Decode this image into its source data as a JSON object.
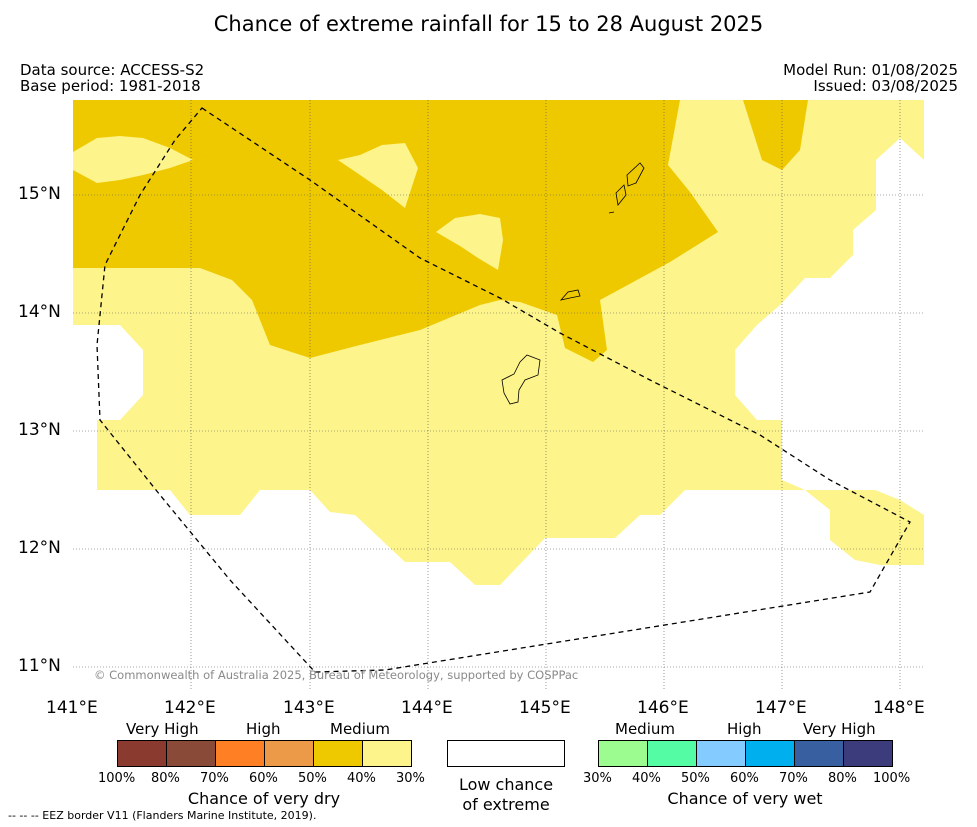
{
  "title": "Chance of extreme rainfall for 15 to 28 August 2025",
  "meta": {
    "data_source": "Data source: ACCESS-S2",
    "base_period": "Base period: 1981-2018",
    "model_run": "Model Run: 01/08/2025",
    "issued": "Issued: 03/08/2025"
  },
  "map": {
    "lon_ticks": [
      "141°E",
      "142°E",
      "143°E",
      "144°E",
      "145°E",
      "146°E",
      "147°E",
      "148°E"
    ],
    "lat_ticks": [
      "15°N",
      "14°N",
      "13°N",
      "12°N",
      "11°N"
    ],
    "copyright": "© Commonwealth of Australia 2025, Bureau of Meteorology, supported by COSPPac",
    "colors": {
      "medium_dry": "#efc900",
      "low_dry": "#fdf48b",
      "low": "#ffffff",
      "eez_line": "#000000"
    }
  },
  "legend": {
    "dry": {
      "headers": [
        "Very High",
        "High",
        "Medium"
      ],
      "colors": [
        "#8b3a30",
        "#8a4a38",
        "#ff7f24",
        "#ed9a48",
        "#efc900",
        "#fdf48b"
      ],
      "pcts": [
        "100%",
        "80%",
        "70%",
        "60%",
        "50%",
        "40%",
        "30%"
      ],
      "title": "Chance of very dry"
    },
    "low": {
      "line1": "Low chance",
      "line2": "of extreme"
    },
    "wet": {
      "headers": [
        "Medium",
        "High",
        "Very High"
      ],
      "colors": [
        "#9cfc8f",
        "#54fca4",
        "#84ccff",
        "#00b0ee",
        "#3860a0",
        "#3c3c7c"
      ],
      "pcts": [
        "30%",
        "40%",
        "50%",
        "60%",
        "70%",
        "80%",
        "100%"
      ],
      "title": "Chance of very wet"
    }
  },
  "eez_note": "--  --  -- EEZ border V11 (Flanders Marine Institute, 2019)."
}
